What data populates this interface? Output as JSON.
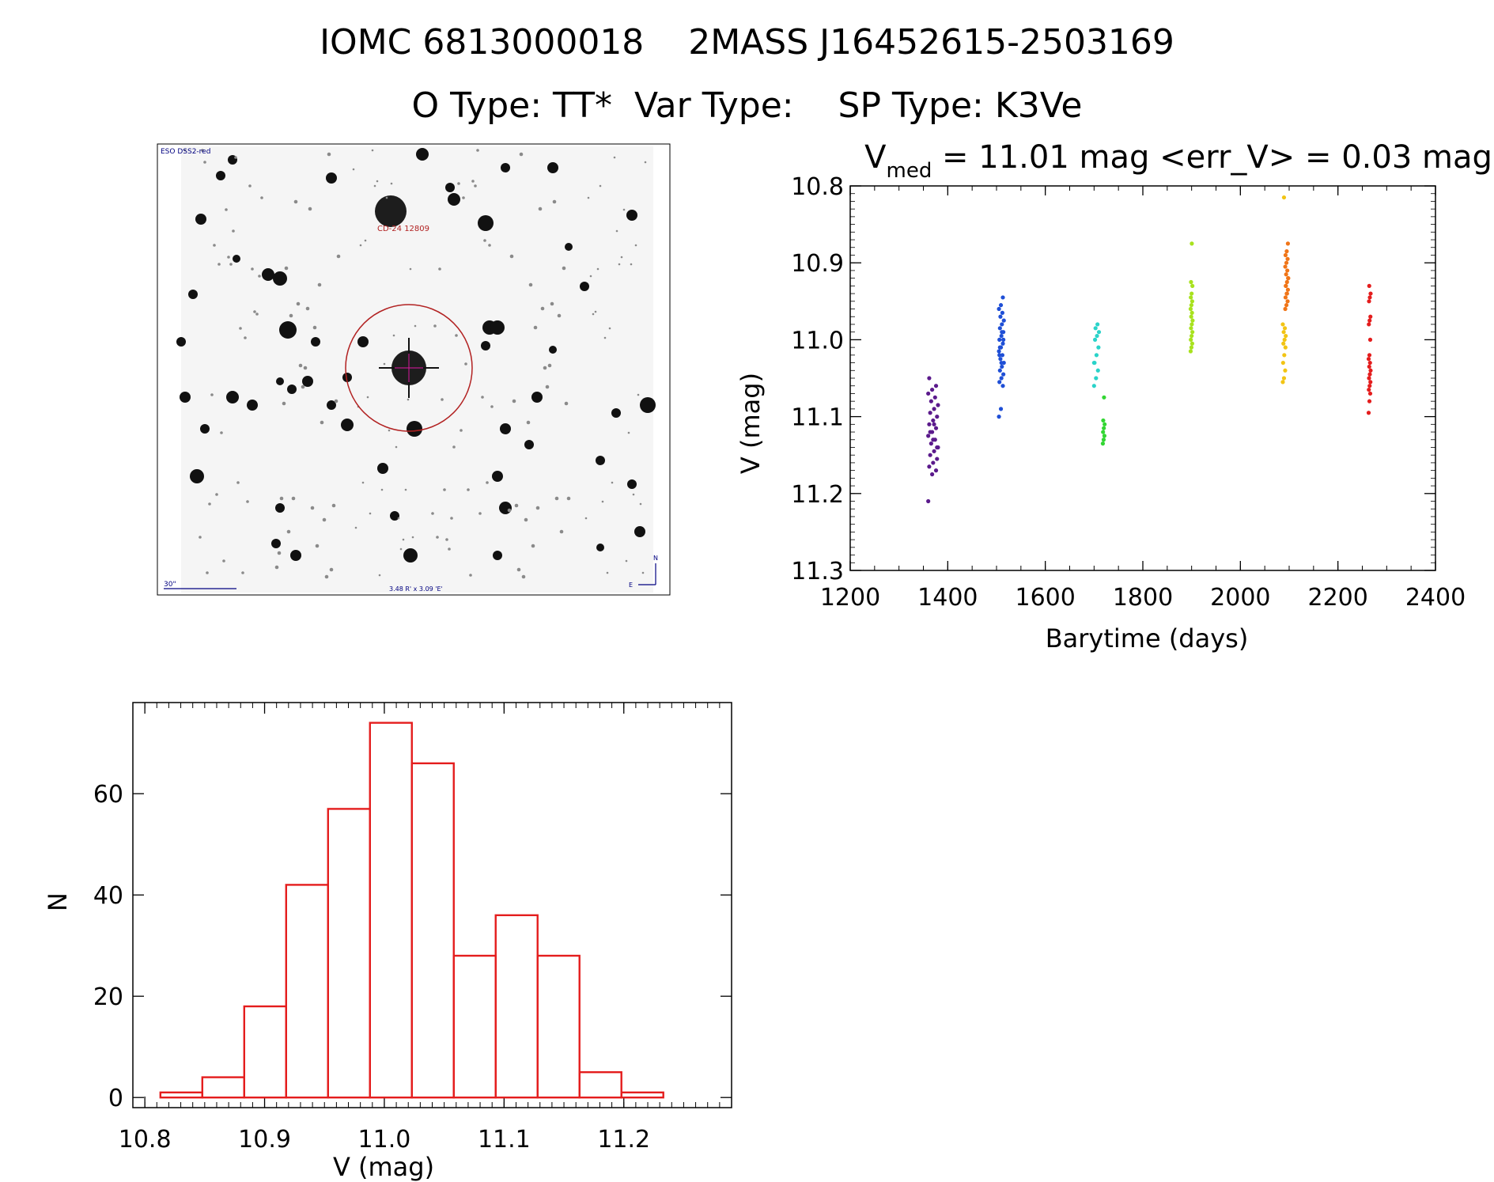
{
  "header": {
    "line1": "IOMC 6813000018    2MASS J16452615-2503169",
    "line2": "O Type: TT*  Var Type:    SP Type: K3Ve"
  },
  "finder_chart": {
    "survey_label": "ESO DSS2-red",
    "object_label": "CD-24 12809",
    "scale_label": "30\"",
    "fov_label": "3.48 R' x 3.09 'E'",
    "compass_n": "N",
    "compass_e": "E",
    "circle_color": "#b22222",
    "label_color": "#000080"
  },
  "chart_data": [
    {
      "type": "scatter",
      "title_parts": {
        "v": "V",
        "sub": "med",
        "rest": " = 11.01 mag <err_V> = 0.03 mag"
      },
      "xlabel": "Barytime (days)",
      "ylabel": "V (mag)",
      "xlim": [
        1200,
        2400
      ],
      "ylim": [
        11.3,
        10.8
      ],
      "y_inverted": true,
      "xticks": [
        1200,
        1400,
        1600,
        1800,
        2000,
        2200,
        2400
      ],
      "yticks": [
        "10.8",
        "10.9",
        "11.0",
        "11.1",
        "11.2",
        "11.3"
      ],
      "groups": [
        {
          "color": "#5b1a8c",
          "x_center": 1370,
          "x_spread": 20,
          "y_values": [
            11.21,
            11.175,
            11.17,
            11.165,
            11.16,
            11.155,
            11.15,
            11.145,
            11.14,
            11.135,
            11.13,
            11.125,
            11.12,
            11.115,
            11.11,
            11.105,
            11.1,
            11.095,
            11.09,
            11.085,
            11.08,
            11.075,
            11.07,
            11.065,
            11.06,
            11.05,
            11.13,
            11.14,
            11.12,
            11.11
          ]
        },
        {
          "color": "#1f4fd6",
          "x_center": 1510,
          "x_spread": 10,
          "y_values": [
            11.1,
            11.09,
            11.06,
            11.055,
            11.05,
            11.045,
            11.04,
            11.035,
            11.03,
            11.025,
            11.02,
            11.015,
            11.01,
            11.005,
            11.0,
            10.995,
            10.99,
            10.985,
            10.98,
            10.975,
            10.97,
            10.965,
            10.96,
            10.955,
            10.945,
            11.02,
            11.03,
            11.0,
            11.01,
            10.99
          ]
        },
        {
          "color": "#2ad3c9",
          "x_center": 1705,
          "x_spread": 10,
          "y_values": [
            11.06,
            11.05,
            11.04,
            11.03,
            11.02,
            11.01,
            11.0,
            10.995,
            10.99,
            10.985,
            10.98,
            11.03
          ]
        },
        {
          "color": "#33d633",
          "x_center": 1720,
          "x_spread": 4,
          "y_values": [
            11.135,
            11.13,
            11.125,
            11.12,
            11.115,
            11.11,
            11.105,
            11.075
          ]
        },
        {
          "color": "#a8e21e",
          "x_center": 1900,
          "x_spread": 4,
          "y_values": [
            11.015,
            11.01,
            11.005,
            11.0,
            10.995,
            10.99,
            10.985,
            10.98,
            10.975,
            10.97,
            10.965,
            10.96,
            10.955,
            10.95,
            10.945,
            10.94,
            10.93,
            10.925,
            10.875
          ]
        },
        {
          "color": "#f2c414",
          "x_center": 2090,
          "x_spread": 6,
          "y_values": [
            11.055,
            11.05,
            11.04,
            11.03,
            11.02,
            11.01,
            11.005,
            11.0,
            10.995,
            10.99,
            10.985,
            10.98,
            10.815
          ]
        },
        {
          "color": "#f07518",
          "x_center": 2095,
          "x_spread": 6,
          "y_values": [
            10.96,
            10.955,
            10.95,
            10.945,
            10.94,
            10.935,
            10.93,
            10.925,
            10.92,
            10.915,
            10.91,
            10.905,
            10.9,
            10.895,
            10.89,
            10.885,
            10.875,
            10.93,
            10.94,
            10.92
          ]
        },
        {
          "color": "#e41d1d",
          "x_center": 2265,
          "x_spread": 4,
          "y_values": [
            11.095,
            11.08,
            11.07,
            11.065,
            11.06,
            11.055,
            11.05,
            11.045,
            11.04,
            11.035,
            11.03,
            11.025,
            11.02,
            11.0,
            10.98,
            10.975,
            10.97,
            10.95,
            10.945,
            10.94,
            10.93
          ]
        }
      ]
    },
    {
      "type": "bar",
      "style": "step-histogram",
      "xlabel": "V (mag)",
      "ylabel": "N",
      "xlim": [
        10.79,
        11.29
      ],
      "ylim": [
        -2,
        78
      ],
      "xticks": [
        "10.8",
        "10.9",
        "11.0",
        "11.1",
        "11.2"
      ],
      "yticks": [
        "0",
        "20",
        "40",
        "60"
      ],
      "color": "#e41d1d",
      "bin_edges": [
        10.813,
        10.848,
        10.883,
        10.918,
        10.953,
        10.988,
        11.023,
        11.058,
        11.093,
        11.128,
        11.163,
        11.198,
        11.233
      ],
      "values": [
        1,
        4,
        18,
        42,
        57,
        74,
        66,
        28,
        36,
        28,
        5,
        1
      ]
    }
  ]
}
